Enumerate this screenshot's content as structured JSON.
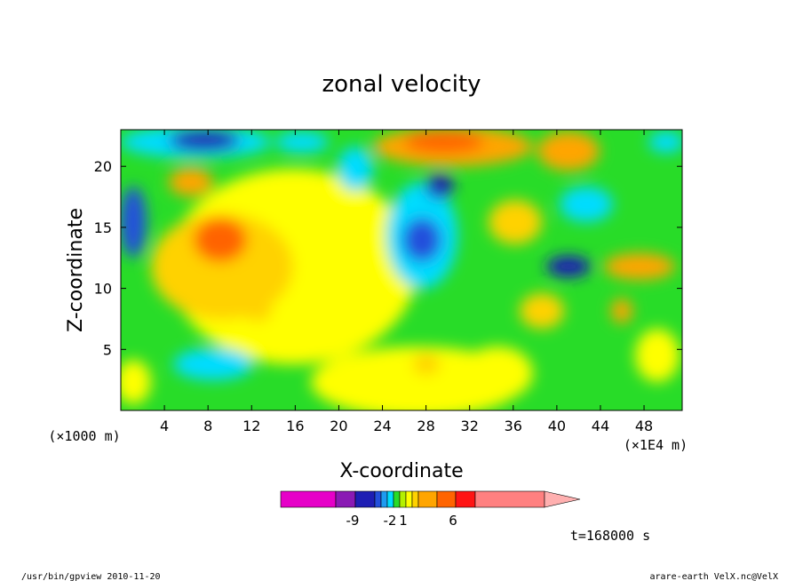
{
  "chart_data": {
    "type": "heatmap",
    "title": "zonal velocity",
    "xlabel": "X-coordinate",
    "ylabel": "Z-coordinate",
    "x_unit_label": "(×1E4 m)",
    "y_unit_label": "(×1000 m)",
    "xlim": [
      0,
      51.5
    ],
    "ylim": [
      0,
      23
    ],
    "x_ticks": [
      4,
      8,
      12,
      16,
      20,
      24,
      28,
      32,
      36,
      40,
      44,
      48
    ],
    "y_ticks": [
      5,
      10,
      15,
      20
    ],
    "colorbar": {
      "tick_labels": [
        "-9",
        "-2",
        "1",
        "6"
      ],
      "tick_values": [
        -9,
        -2,
        1,
        6
      ],
      "level_colors": [
        "#e600c8",
        "#8a1ab4",
        "#1e1eb4",
        "#2350dc",
        "#1e9bf0",
        "#00dcff",
        "#28dc28",
        "#b4f000",
        "#ffff00",
        "#ffd200",
        "#ffa500",
        "#ff6400",
        "#ff1414",
        "#ff8080",
        "#ffb0b0"
      ]
    },
    "regions": [
      {
        "label": "-9",
        "value": -9,
        "x": 7,
        "z": 21.5
      },
      {
        "label": "-2",
        "value": -2,
        "x": 26.5,
        "z": 15.5
      },
      {
        "label": "-9",
        "value": -9,
        "x": 43,
        "z": 11.5
      },
      {
        "label": "-2",
        "value": -2,
        "x": 8,
        "z": 4.5
      },
      {
        "label": "6",
        "value": 6,
        "x": 9,
        "z": 14.5
      },
      {
        "label": "6",
        "value": 6,
        "x": 31,
        "z": 21.5
      },
      {
        "label": "1",
        "value": 1,
        "x": 20,
        "z": 12
      }
    ]
  },
  "time_label": "t=168000 s",
  "footer": {
    "left": "/usr/bin/gpview   2010-11-20",
    "right": "arare-earth_VelX.nc@VelX"
  }
}
